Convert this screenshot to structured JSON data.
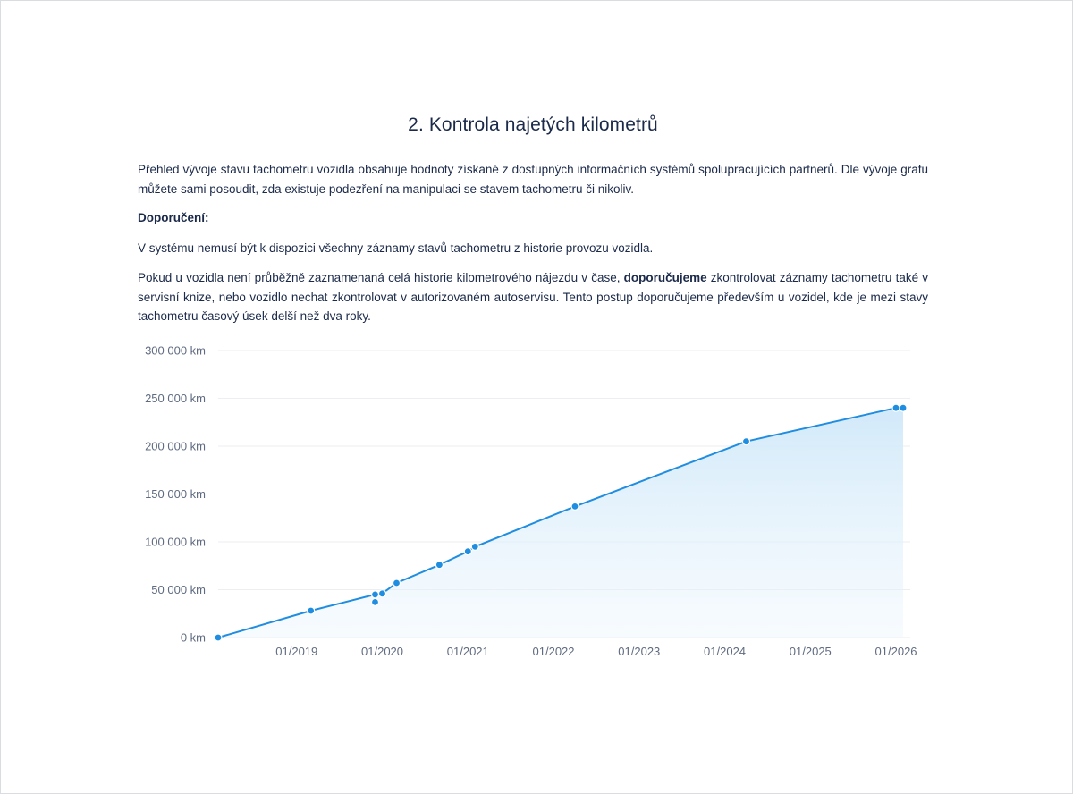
{
  "document": {
    "title": "2. Kontrola najetých kilometrů",
    "intro": "Přehled vývoje stavu tachometru vozidla obsahuje hodnoty získané z dostupných informačních systémů spolupracujících partnerů. Dle vývoje grafu můžete sami posoudit, zda existuje podezření na manipulaci se stavem tachometru či nikoliv.",
    "recommendation_heading": "Doporučení:",
    "recommendation_1": "V systému nemusí být k dispozici všechny záznamy stavů tachometru z historie provozu vozidla.",
    "recommendation_2_start": "Pokud u vozidla není průběžně zaznamenaná celá historie kilometrového nájezdu v čase, ",
    "recommendation_2_bold": "doporučujeme",
    "recommendation_2_end": " zkontrolovat záznamy tachometru také v servisní knize, nebo vozidlo nechat zkontrolovat v autorizovaném autoservisu. Tento postup doporučujeme především u vozidel, kde je mezi stavy tachometru časový úsek delší než dva roky."
  },
  "chart_data": {
    "type": "area",
    "x_axis": {
      "type": "date",
      "ticks": [
        "01/2019",
        "01/2020",
        "01/2021",
        "01/2022",
        "01/2023",
        "01/2024",
        "01/2025",
        "01/2026"
      ],
      "range": [
        "2018-02",
        "2026-03"
      ]
    },
    "y_axis": {
      "ticks": [
        "0 km",
        "50 000 km",
        "100 000 km",
        "150 000 km",
        "200 000 km",
        "250 000 km",
        "300 000 km"
      ],
      "ylim": [
        0,
        300000
      ]
    },
    "grid": true,
    "line_color": "#1f8de0",
    "fill_color": "#d7ecfa",
    "points": [
      {
        "date": "2018-02",
        "km": 0
      },
      {
        "date": "2019-03",
        "km": 28000
      },
      {
        "date": "2019-12",
        "km": 37000
      },
      {
        "date": "2019-12",
        "km": 45000
      },
      {
        "date": "2020-01",
        "km": 46000
      },
      {
        "date": "2020-03",
        "km": 57000
      },
      {
        "date": "2020-09",
        "km": 76000
      },
      {
        "date": "2021-01",
        "km": 90000
      },
      {
        "date": "2021-02",
        "km": 95000
      },
      {
        "date": "2022-04",
        "km": 137000
      },
      {
        "date": "2024-04",
        "km": 205000
      },
      {
        "date": "2026-01",
        "km": 240000
      },
      {
        "date": "2026-02",
        "km": 240000
      }
    ]
  }
}
